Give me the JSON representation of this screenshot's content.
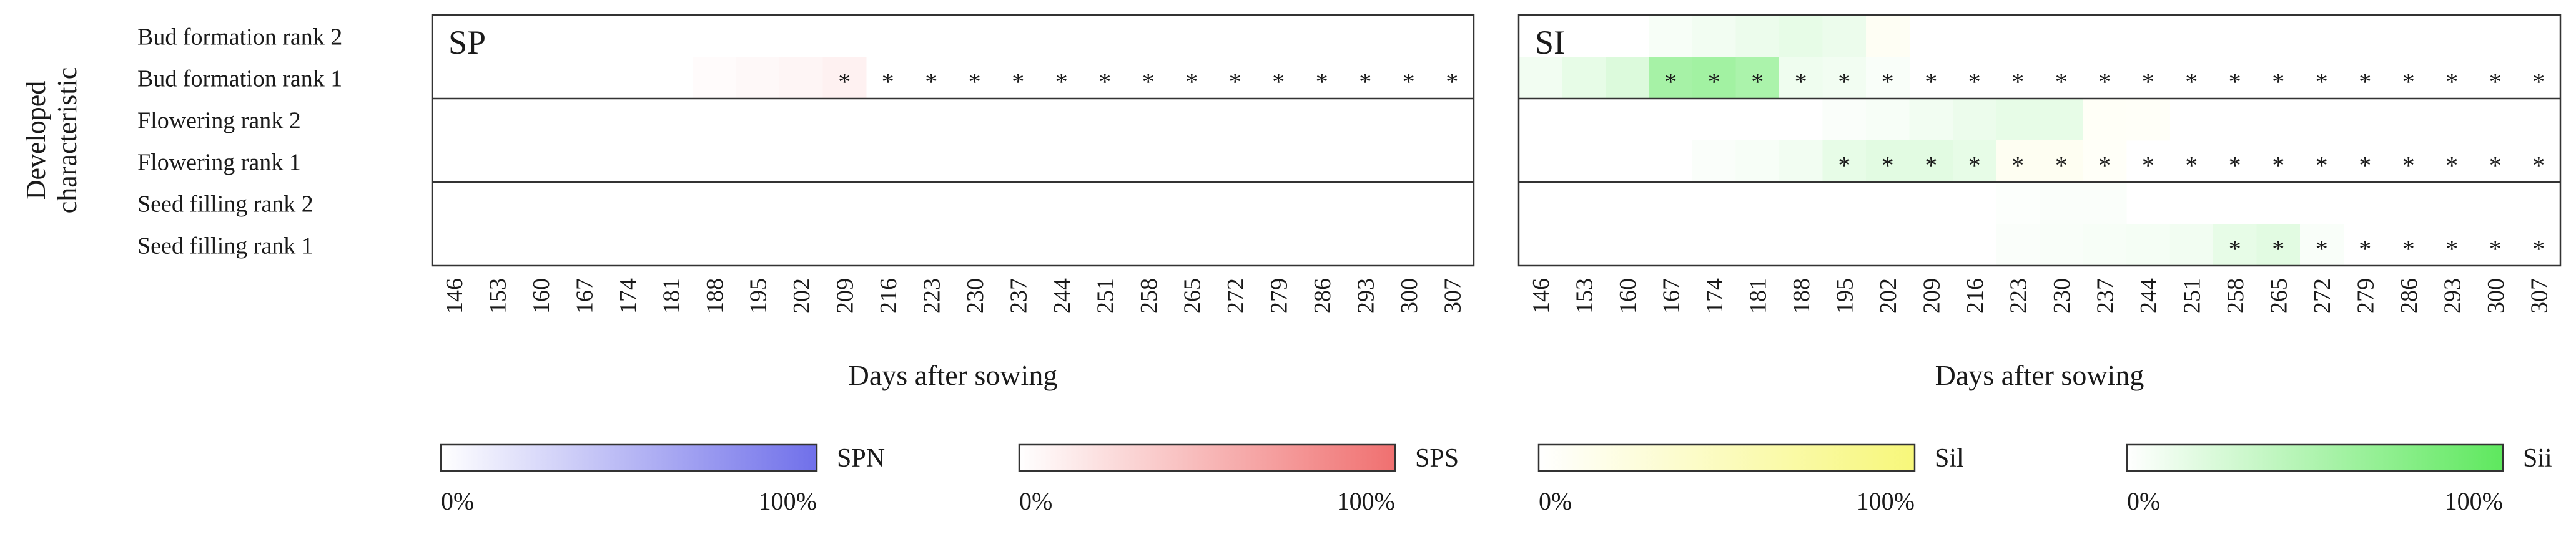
{
  "chart_data": {
    "type": "heatmap",
    "y_axis_title": "Developed characteristic",
    "row_labels": [
      "Bud formation rank 2",
      "Bud formation rank 1",
      "Flowering rank 2",
      "Flowering rank 1",
      "Seed filling rank 2",
      "Seed filling rank 1"
    ],
    "x_tick_labels": [
      "146",
      "153",
      "160",
      "167",
      "174",
      "181",
      "188",
      "195",
      "202",
      "209",
      "216",
      "223",
      "230",
      "237",
      "244",
      "251",
      "258",
      "265",
      "272",
      "279",
      "286",
      "293",
      "300",
      "307"
    ],
    "xlabel": "Days after sowing",
    "significance_marker": "*",
    "panels": [
      {
        "title": "SP",
        "cells": [
          {
            "row": 1,
            "col": 6,
            "component": "SPS",
            "value": 3
          },
          {
            "row": 1,
            "col": 7,
            "component": "SPS",
            "value": 5
          },
          {
            "row": 1,
            "col": 8,
            "component": "SPS",
            "value": 7
          },
          {
            "row": 1,
            "col": 9,
            "component": "SPS",
            "value": 10
          }
        ],
        "significant": [
          {
            "row": 1,
            "cols": [
              9,
              10,
              11,
              12,
              13,
              14,
              15,
              16,
              17,
              18,
              19,
              20,
              21,
              22,
              23
            ]
          }
        ]
      },
      {
        "title": "SI",
        "cells": [
          {
            "row": 0,
            "col": 3,
            "component": "Sii",
            "value": 5
          },
          {
            "row": 0,
            "col": 4,
            "component": "Sii",
            "value": 8
          },
          {
            "row": 0,
            "col": 5,
            "component": "Sii",
            "value": 12
          },
          {
            "row": 0,
            "col": 6,
            "component": "Sii",
            "value": 15
          },
          {
            "row": 0,
            "col": 7,
            "component": "Sii",
            "value": 12
          },
          {
            "row": 0,
            "col": 8,
            "component": "Sil",
            "value": 8
          },
          {
            "row": 1,
            "col": 0,
            "component": "Sii",
            "value": 8
          },
          {
            "row": 1,
            "col": 1,
            "component": "Sii",
            "value": 15
          },
          {
            "row": 1,
            "col": 2,
            "component": "Sii",
            "value": 22
          },
          {
            "row": 1,
            "col": 3,
            "component": "Sii",
            "value": 55
          },
          {
            "row": 1,
            "col": 4,
            "component": "Sii",
            "value": 58
          },
          {
            "row": 1,
            "col": 5,
            "component": "Sii",
            "value": 52
          },
          {
            "row": 1,
            "col": 6,
            "component": "Sii",
            "value": 10
          },
          {
            "row": 1,
            "col": 7,
            "component": "Sii",
            "value": 8
          },
          {
            "row": 1,
            "col": 8,
            "component": "Sii",
            "value": 4
          },
          {
            "row": 2,
            "col": 7,
            "component": "Sii",
            "value": 3
          },
          {
            "row": 2,
            "col": 8,
            "component": "Sii",
            "value": 5
          },
          {
            "row": 2,
            "col": 9,
            "component": "Sii",
            "value": 8
          },
          {
            "row": 2,
            "col": 10,
            "component": "Sii",
            "value": 12
          },
          {
            "row": 2,
            "col": 11,
            "component": "Sii",
            "value": 15
          },
          {
            "row": 2,
            "col": 12,
            "component": "Sii",
            "value": 15
          },
          {
            "row": 2,
            "col": 13,
            "component": "Sil",
            "value": 6
          },
          {
            "row": 2,
            "col": 14,
            "component": "Sil",
            "value": 5
          },
          {
            "row": 3,
            "col": 4,
            "component": "Sii",
            "value": 3
          },
          {
            "row": 3,
            "col": 5,
            "component": "Sii",
            "value": 5
          },
          {
            "row": 3,
            "col": 6,
            "component": "Sii",
            "value": 8
          },
          {
            "row": 3,
            "col": 7,
            "component": "Sii",
            "value": 15
          },
          {
            "row": 3,
            "col": 8,
            "component": "Sii",
            "value": 18
          },
          {
            "row": 3,
            "col": 9,
            "component": "Sii",
            "value": 18
          },
          {
            "row": 3,
            "col": 10,
            "component": "Sii",
            "value": 15
          },
          {
            "row": 3,
            "col": 11,
            "component": "Sil",
            "value": 10
          },
          {
            "row": 3,
            "col": 12,
            "component": "Sil",
            "value": 10
          },
          {
            "row": 3,
            "col": 13,
            "component": "Sil",
            "value": 5
          },
          {
            "row": 4,
            "col": 11,
            "component": "Sii",
            "value": 2
          },
          {
            "row": 4,
            "col": 12,
            "component": "Sii",
            "value": 3
          },
          {
            "row": 4,
            "col": 13,
            "component": "Sii",
            "value": 3
          },
          {
            "row": 5,
            "col": 11,
            "component": "Sii",
            "value": 3
          },
          {
            "row": 5,
            "col": 12,
            "component": "Sii",
            "value": 4
          },
          {
            "row": 5,
            "col": 13,
            "component": "Sii",
            "value": 5
          },
          {
            "row": 5,
            "col": 14,
            "component": "Sii",
            "value": 6
          },
          {
            "row": 5,
            "col": 15,
            "component": "Sii",
            "value": 8
          },
          {
            "row": 5,
            "col": 16,
            "component": "Sii",
            "value": 15
          },
          {
            "row": 5,
            "col": 17,
            "component": "Sii",
            "value": 18
          },
          {
            "row": 5,
            "col": 18,
            "component": "Sii",
            "value": 4
          }
        ],
        "significant": [
          {
            "row": 1,
            "cols": [
              3,
              4,
              5,
              6,
              7,
              8,
              9,
              10,
              11,
              12,
              13,
              14,
              15,
              16,
              17,
              18,
              19,
              20,
              21,
              22,
              23
            ]
          },
          {
            "row": 3,
            "cols": [
              7,
              8,
              9,
              10,
              11,
              12,
              13,
              14,
              15,
              16,
              17,
              18,
              19,
              20,
              21,
              22,
              23
            ]
          },
          {
            "row": 5,
            "cols": [
              16,
              17,
              18,
              19,
              20,
              21,
              22,
              23
            ]
          }
        ]
      }
    ],
    "legend": [
      {
        "name": "SPN",
        "color": "#7070ea",
        "min_label": "0%",
        "max_label": "100%"
      },
      {
        "name": "SPS",
        "color": "#f07070",
        "min_label": "0%",
        "max_label": "100%"
      },
      {
        "name": "Sil",
        "color": "#f7f77a",
        "min_label": "0%",
        "max_label": "100%"
      },
      {
        "name": "Sii",
        "color": "#5ee85e",
        "min_label": "0%",
        "max_label": "100%"
      }
    ]
  }
}
